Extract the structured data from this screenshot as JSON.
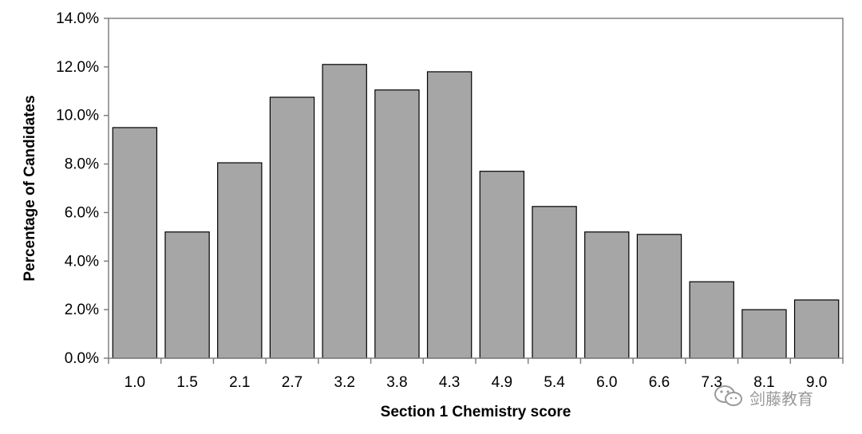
{
  "chart_data": {
    "type": "bar",
    "title": "",
    "xlabel": "Section 1 Chemistry score",
    "ylabel": "Percentage of Candidates",
    "categories": [
      "1.0",
      "1.5",
      "2.1",
      "2.7",
      "3.2",
      "3.8",
      "4.3",
      "4.9",
      "5.4",
      "6.0",
      "6.6",
      "7.3",
      "8.1",
      "9.0"
    ],
    "values": [
      9.5,
      5.2,
      8.05,
      10.75,
      12.1,
      11.05,
      11.8,
      7.7,
      6.25,
      5.2,
      5.1,
      3.15,
      2.0,
      2.4
    ],
    "ylim": [
      0,
      14
    ],
    "yticks": [
      0,
      2,
      4,
      6,
      8,
      10,
      12,
      14
    ],
    "ytick_labels": [
      "0.0%",
      "2.0%",
      "4.0%",
      "6.0%",
      "8.0%",
      "10.0%",
      "12.0%",
      "14.0%"
    ],
    "grid": false,
    "bar_color": "#a6a6a6",
    "bar_edge_color": "#000000"
  },
  "watermark": {
    "text": "剑藤教育",
    "icon": "wechat-icon"
  }
}
